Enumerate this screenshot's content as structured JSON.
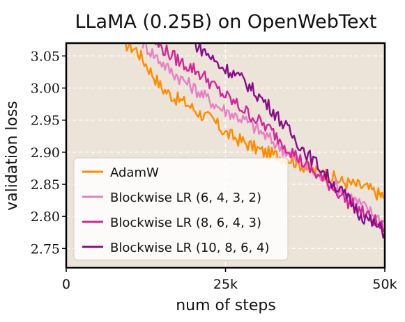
{
  "chart_data": {
    "type": "line",
    "title": "LLaMA (0.25B) on OpenWebText",
    "xlabel": "num of steps",
    "ylabel": "validation loss",
    "xlim": [
      0,
      50000
    ],
    "ylim": [
      2.72,
      3.07
    ],
    "x_ticks": [
      {
        "value": 0,
        "label": "0"
      },
      {
        "value": 25000,
        "label": "25k"
      },
      {
        "value": 50000,
        "label": "50k"
      }
    ],
    "y_ticks": [
      {
        "value": 2.75,
        "label": "2.75"
      },
      {
        "value": 2.8,
        "label": "2.80"
      },
      {
        "value": 2.85,
        "label": "2.85"
      },
      {
        "value": 2.9,
        "label": "2.90"
      },
      {
        "value": 2.95,
        "label": "2.95"
      },
      {
        "value": 3.0,
        "label": "3.00"
      },
      {
        "value": 3.05,
        "label": "3.05"
      }
    ],
    "grid": true,
    "grid_lines_x": [
      25000
    ],
    "plot_background": "#ece4d8",
    "legend_position": "lower-left",
    "series": [
      {
        "name": "AdamW",
        "color": "#ff8c00",
        "x": [
          9000,
          11000,
          13000,
          15000,
          17000,
          19000,
          21000,
          23000,
          25000,
          27000,
          29000,
          31000,
          33000,
          35000,
          37000,
          39000,
          41000,
          43000,
          45000,
          47000,
          49000,
          50000
        ],
        "y": [
          3.07,
          3.06,
          3.03,
          3.0,
          2.985,
          2.975,
          2.96,
          2.95,
          2.93,
          2.92,
          2.91,
          2.9,
          2.895,
          2.89,
          2.88,
          2.87,
          2.865,
          2.855,
          2.85,
          2.845,
          2.835,
          2.83
        ]
      },
      {
        "name": "Blockwise LR (6, 4, 3, 2)",
        "color": "#e87fc6",
        "x": [
          12000,
          14000,
          16000,
          18000,
          20000,
          22000,
          24000,
          26000,
          28000,
          30000,
          32000,
          34000,
          36000,
          38000,
          40000,
          42000,
          44000,
          46000,
          48000,
          50000
        ],
        "y": [
          3.07,
          3.05,
          3.03,
          3.015,
          3.0,
          2.985,
          2.97,
          2.96,
          2.95,
          2.935,
          2.92,
          2.905,
          2.89,
          2.875,
          2.86,
          2.85,
          2.835,
          2.82,
          2.805,
          2.79
        ]
      },
      {
        "name": "Blockwise LR (8, 6, 4, 3)",
        "color": "#d6249a",
        "x": [
          14000,
          16000,
          18000,
          20000,
          22000,
          24000,
          26000,
          28000,
          30000,
          32000,
          34000,
          36000,
          38000,
          40000,
          42000,
          44000,
          46000,
          48000,
          50000
        ],
        "y": [
          3.07,
          3.055,
          3.04,
          3.03,
          3.015,
          2.995,
          2.98,
          2.965,
          2.95,
          2.935,
          2.915,
          2.895,
          2.875,
          2.86,
          2.845,
          2.825,
          2.81,
          2.795,
          2.78
        ]
      },
      {
        "name": "Blockwise LR (10, 8, 6, 4)",
        "color": "#880d88",
        "x": [
          20000,
          22000,
          24000,
          26000,
          28000,
          30000,
          32000,
          34000,
          36000,
          38000,
          40000,
          42000,
          44000,
          46000,
          48000,
          50000
        ],
        "y": [
          3.07,
          3.055,
          3.035,
          3.025,
          3.01,
          2.99,
          2.97,
          2.945,
          2.92,
          2.895,
          2.875,
          2.85,
          2.83,
          2.805,
          2.79,
          2.775
        ]
      }
    ]
  }
}
